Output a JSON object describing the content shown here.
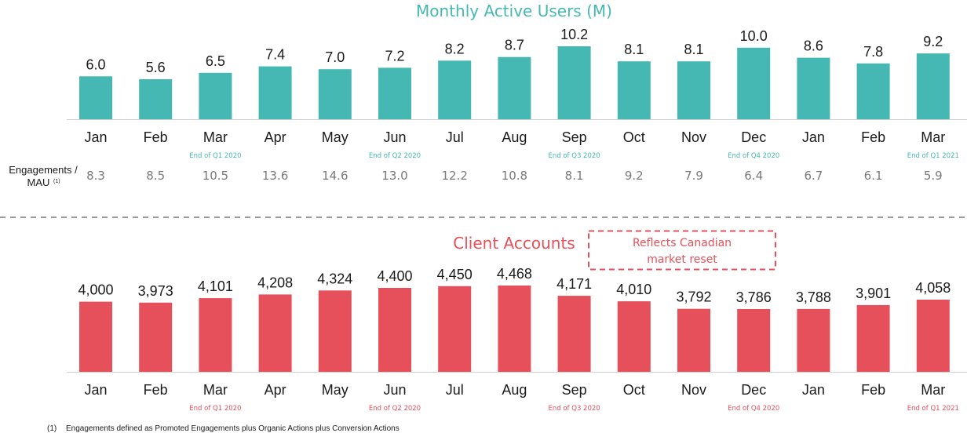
{
  "colors": {
    "mau": "#45b8b3",
    "clients": "#e6505a",
    "axis": "#d0d0d0",
    "text": "#1a1a1a",
    "muted": "#7a7a7a",
    "divider": "#999999"
  },
  "chart_data": [
    {
      "type": "bar",
      "title": "Monthly Active Users (M)",
      "categories": [
        "Jan",
        "Feb",
        "Mar",
        "Apr",
        "May",
        "Jun",
        "Jul",
        "Aug",
        "Sep",
        "Oct",
        "Nov",
        "Dec",
        "Jan",
        "Feb",
        "Mar"
      ],
      "series": [
        {
          "values": [
            6.0,
            5.6,
            6.5,
            7.4,
            7.0,
            7.2,
            8.2,
            8.7,
            10.2,
            8.1,
            8.1,
            10.0,
            8.6,
            7.8,
            9.2
          ]
        }
      ],
      "value_labels": [
        "6.0",
        "5.6",
        "6.5",
        "7.4",
        "7.0",
        "7.2",
        "8.2",
        "8.7",
        "10.2",
        "8.1",
        "8.1",
        "10.0",
        "8.6",
        "7.8",
        "9.2"
      ],
      "quarter_labels": [
        "",
        "",
        "End of Q1 2020",
        "",
        "",
        "End of Q2 2020",
        "",
        "",
        "End of Q3 2020",
        "",
        "",
        "End of Q4 2020",
        "",
        "",
        "End of Q1 2021"
      ],
      "ylim": [
        0,
        10.2
      ],
      "grid": false,
      "secondary_row": {
        "label_line1": "Engagements /",
        "label_line2": "MAU",
        "label_footnote_mark": "(1)",
        "values": [
          "8.3",
          "8.5",
          "10.5",
          "13.6",
          "14.6",
          "13.0",
          "12.2",
          "10.8",
          "8.1",
          "9.2",
          "7.9",
          "6.4",
          "6.7",
          "6.1",
          "5.9"
        ]
      }
    },
    {
      "type": "bar",
      "title": "Client Accounts",
      "categories": [
        "Jan",
        "Feb",
        "Mar",
        "Apr",
        "May",
        "Jun",
        "Jul",
        "Aug",
        "Sep",
        "Oct",
        "Nov",
        "Dec",
        "Jan",
        "Feb",
        "Mar"
      ],
      "series": [
        {
          "values": [
            4000,
            3973,
            4101,
            4208,
            4324,
            4400,
            4450,
            4468,
            4171,
            4010,
            3792,
            3786,
            3788,
            3901,
            4058
          ]
        }
      ],
      "value_labels": [
        "4,000",
        "3,973",
        "4,101",
        "4,208",
        "4,324",
        "4,400",
        "4,450",
        "4,468",
        "4,171",
        "4,010",
        "3,792",
        "3,786",
        "3,788",
        "3,901",
        "4,058"
      ],
      "quarter_labels": [
        "",
        "",
        "End of Q1 2020",
        "",
        "",
        "End of Q2 2020",
        "",
        "",
        "End of Q3 2020",
        "",
        "",
        "End of Q4 2020",
        "",
        "",
        "End of Q1 2021"
      ],
      "ylim": [
        0,
        4468
      ],
      "grid": false,
      "annotation": {
        "line1": "Reflects Canadian",
        "line2": "market reset"
      }
    }
  ],
  "footnote": {
    "marker": "(1)",
    "text": "Engagements defined as Promoted Engagements plus Organic Actions plus Conversion Actions"
  }
}
